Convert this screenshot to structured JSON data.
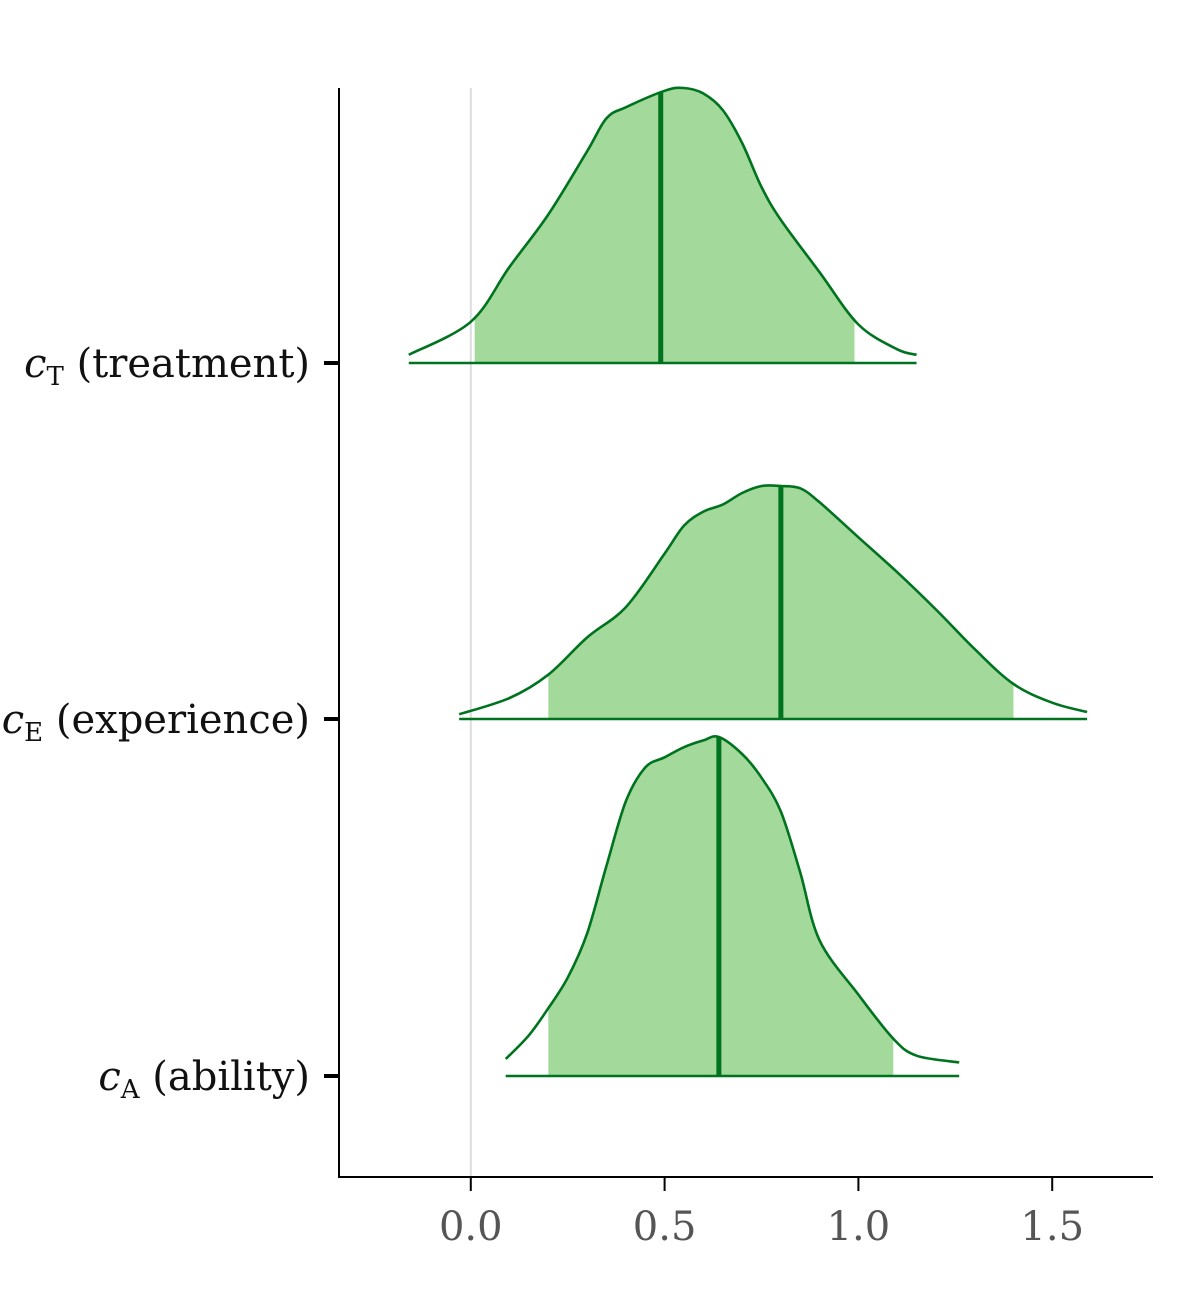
{
  "chart_data": {
    "type": "ridgeline",
    "xlim": [
      -0.34,
      1.76
    ],
    "x_ticks": [
      "0.0",
      "0.5",
      "1.0",
      "1.5"
    ],
    "x_tick_values": [
      0.0,
      0.5,
      1.0,
      1.5
    ],
    "reference_line": 0.0,
    "grid": false,
    "colors": {
      "fill": "#a3d99b",
      "line": "#00731f",
      "axis": "#000000",
      "reference": "#dddddd"
    },
    "series": [
      {
        "label_var": "c",
        "label_sub": "T",
        "label_text": "(treatment)",
        "median": 0.49,
        "interval": [
          0.01,
          0.99
        ],
        "range": [
          -0.16,
          1.15
        ],
        "density": [
          [
            -0.16,
            0.03
          ],
          [
            0.0,
            0.15
          ],
          [
            0.1,
            0.35
          ],
          [
            0.2,
            0.54
          ],
          [
            0.3,
            0.77
          ],
          [
            0.35,
            0.89
          ],
          [
            0.4,
            0.93
          ],
          [
            0.5,
            0.99
          ],
          [
            0.55,
            1.0
          ],
          [
            0.6,
            0.98
          ],
          [
            0.65,
            0.92
          ],
          [
            0.7,
            0.8
          ],
          [
            0.75,
            0.64
          ],
          [
            0.8,
            0.52
          ],
          [
            0.9,
            0.33
          ],
          [
            1.0,
            0.14
          ],
          [
            1.1,
            0.05
          ],
          [
            1.15,
            0.03
          ]
        ]
      },
      {
        "label_var": "c",
        "label_sub": "E",
        "label_text": "(experience)",
        "median": 0.8,
        "interval": [
          0.2,
          1.4
        ],
        "range": [
          -0.03,
          1.59
        ],
        "density": [
          [
            -0.03,
            0.02
          ],
          [
            0.1,
            0.09
          ],
          [
            0.2,
            0.19
          ],
          [
            0.3,
            0.35
          ],
          [
            0.4,
            0.48
          ],
          [
            0.5,
            0.71
          ],
          [
            0.55,
            0.83
          ],
          [
            0.6,
            0.89
          ],
          [
            0.65,
            0.92
          ],
          [
            0.7,
            0.97
          ],
          [
            0.75,
            1.0
          ],
          [
            0.8,
            1.0
          ],
          [
            0.85,
            0.99
          ],
          [
            0.9,
            0.93
          ],
          [
            1.0,
            0.78
          ],
          [
            1.1,
            0.63
          ],
          [
            1.2,
            0.47
          ],
          [
            1.3,
            0.3
          ],
          [
            1.4,
            0.15
          ],
          [
            1.5,
            0.07
          ],
          [
            1.59,
            0.03
          ]
        ]
      },
      {
        "label_var": "c",
        "label_sub": "A",
        "label_text": "(ability)",
        "median": 0.64,
        "interval": [
          0.2,
          1.09
        ],
        "range": [
          0.09,
          1.26
        ],
        "density": [
          [
            0.09,
            0.05
          ],
          [
            0.15,
            0.12
          ],
          [
            0.2,
            0.2
          ],
          [
            0.25,
            0.29
          ],
          [
            0.3,
            0.42
          ],
          [
            0.35,
            0.62
          ],
          [
            0.4,
            0.81
          ],
          [
            0.45,
            0.91
          ],
          [
            0.5,
            0.94
          ],
          [
            0.55,
            0.97
          ],
          [
            0.6,
            0.99
          ],
          [
            0.64,
            1.0
          ],
          [
            0.7,
            0.95
          ],
          [
            0.75,
            0.88
          ],
          [
            0.8,
            0.78
          ],
          [
            0.85,
            0.6
          ],
          [
            0.9,
            0.4
          ],
          [
            1.0,
            0.24
          ],
          [
            1.09,
            0.11
          ],
          [
            1.15,
            0.06
          ],
          [
            1.26,
            0.04
          ]
        ]
      }
    ]
  }
}
